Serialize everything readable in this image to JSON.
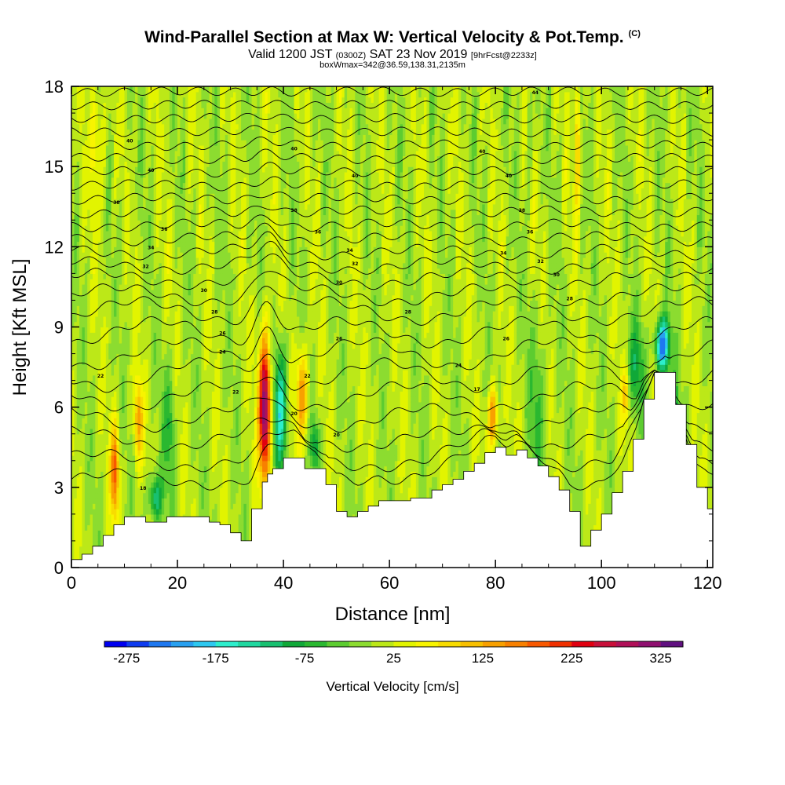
{
  "header": {
    "title": "Wind-Parallel Section at Max W: Vertical Velocity & Pot.Temp.",
    "copyright": "(C)",
    "valid_prefix": "Valid 1200 JST",
    "valid_z": "(0300Z)",
    "valid_date": "SAT 23 Nov 2019",
    "forecast": "[9hrFcst@2233z]",
    "boxinfo": "boxWmax=342@36.59,138.31,2135m"
  },
  "chart_data": {
    "type": "heatmap",
    "xlabel": "Distance [nm]",
    "ylabel": "Height [Kft MSL]",
    "xlim": [
      0,
      121
    ],
    "ylim": [
      0,
      18
    ],
    "x_ticks": [
      0,
      20,
      40,
      60,
      80,
      100,
      120
    ],
    "y_ticks": [
      0,
      3,
      6,
      9,
      12,
      15,
      18
    ],
    "terrain": {
      "x": [
        0,
        2,
        4,
        6,
        8,
        10,
        12,
        14,
        16,
        18,
        20,
        22,
        24,
        26,
        28,
        30,
        32,
        34,
        36,
        37,
        38,
        40,
        42,
        44,
        46,
        48,
        50,
        52,
        54,
        56,
        58,
        60,
        62,
        64,
        66,
        68,
        70,
        72,
        74,
        76,
        78,
        80,
        82,
        84,
        86,
        88,
        90,
        92,
        94,
        96,
        98,
        100,
        102,
        104,
        106,
        108,
        110,
        112,
        114,
        116,
        118,
        120,
        121
      ],
      "height": [
        0.3,
        0.5,
        0.8,
        1.2,
        1.6,
        1.9,
        1.9,
        1.7,
        1.7,
        1.9,
        1.9,
        1.9,
        1.9,
        1.7,
        1.6,
        1.3,
        1.0,
        2.2,
        3.2,
        3.5,
        3.7,
        4.1,
        4.1,
        3.7,
        3.7,
        3.1,
        2.1,
        1.9,
        2.1,
        2.3,
        2.5,
        2.5,
        2.5,
        2.6,
        2.6,
        2.9,
        3.1,
        3.3,
        3.6,
        3.9,
        4.3,
        4.5,
        4.2,
        4.4,
        4.1,
        3.8,
        3.4,
        2.9,
        2.1,
        0.8,
        1.4,
        2.0,
        2.8,
        3.6,
        4.8,
        6.3,
        7.3,
        7.3,
        6.1,
        4.6,
        3.0,
        2.2,
        2.0
      ]
    },
    "w_features": [
      {
        "x": 36.5,
        "z": 6.0,
        "sx": 1.1,
        "sz": 2.6,
        "w": 330
      },
      {
        "x": 39.5,
        "z": 6.0,
        "sx": 1.2,
        "sz": 2.3,
        "w": -175
      },
      {
        "x": 43.5,
        "z": 6.5,
        "sx": 1.1,
        "sz": 1.7,
        "w": 150
      },
      {
        "x": 46.0,
        "z": 4.6,
        "sx": 0.9,
        "sz": 1.0,
        "w": -90
      },
      {
        "x": 8.2,
        "z": 3.6,
        "sx": 0.8,
        "sz": 1.8,
        "w": 170
      },
      {
        "x": 12.6,
        "z": 5.5,
        "sx": 0.8,
        "sz": 1.5,
        "w": 120
      },
      {
        "x": 15.8,
        "z": 2.6,
        "sx": 1.3,
        "sz": 0.9,
        "w": -130
      },
      {
        "x": 18.5,
        "z": 5.3,
        "sx": 1.2,
        "sz": 2.2,
        "w": -75
      },
      {
        "x": 79.5,
        "z": 5.6,
        "sx": 0.9,
        "sz": 1.2,
        "w": 160
      },
      {
        "x": 88.0,
        "z": 6.0,
        "sx": 1.6,
        "sz": 3.2,
        "w": -60
      },
      {
        "x": 111.5,
        "z": 8.3,
        "sx": 1.3,
        "sz": 1.0,
        "w": -260
      },
      {
        "x": 113.5,
        "z": 5.6,
        "sx": 1.0,
        "sz": 1.2,
        "w": -150
      },
      {
        "x": 106.5,
        "z": 7.5,
        "sx": 1.6,
        "sz": 1.6,
        "w": -90
      },
      {
        "x": 104.5,
        "z": 6.5,
        "sx": 0.7,
        "sz": 1.0,
        "w": 90
      },
      {
        "x": 95.5,
        "z": 16.0,
        "sx": 0.6,
        "sz": 2.5,
        "w": 100
      },
      {
        "x": 86.5,
        "z": 16.5,
        "sx": 0.6,
        "sz": 2.0,
        "w": -40
      },
      {
        "x": 5.0,
        "z": 16.0,
        "sx": 1.3,
        "sz": 2.5,
        "w": 60
      }
    ],
    "theta_levels": [
      {
        "y0": 3.3,
        "amp": 0.25
      },
      {
        "y0": 4.0,
        "amp": 0.3
      },
      {
        "y0": 4.8,
        "amp": 0.35
      },
      {
        "y0": 5.6,
        "amp": 0.4
      },
      {
        "y0": 6.4,
        "amp": 0.45
      },
      {
        "y0": 7.2,
        "amp": 0.5
      },
      {
        "y0": 8.0,
        "amp": 0.5
      },
      {
        "y0": 8.8,
        "amp": 0.45
      },
      {
        "y0": 9.6,
        "amp": 0.4
      },
      {
        "y0": 10.2,
        "amp": 0.3
      },
      {
        "y0": 10.8,
        "amp": 0.25
      },
      {
        "y0": 11.3,
        "amp": 0.2
      },
      {
        "y0": 11.8,
        "amp": 0.15
      },
      {
        "y0": 12.3,
        "amp": 0.12
      },
      {
        "y0": 12.8,
        "amp": 0.1
      },
      {
        "y0": 13.3,
        "amp": 0.08
      },
      {
        "y0": 13.8,
        "amp": 0.07
      },
      {
        "y0": 14.3,
        "amp": 0.06
      },
      {
        "y0": 14.8,
        "amp": 0.05
      },
      {
        "y0": 15.3,
        "amp": 0.05
      },
      {
        "y0": 15.8,
        "amp": 0.05
      },
      {
        "y0": 16.3,
        "amp": 0.04
      },
      {
        "y0": 16.8,
        "amp": 0.04
      },
      {
        "y0": 17.3,
        "amp": 0.03
      },
      {
        "y0": 17.8,
        "amp": 0.03
      }
    ],
    "contour_labels": [
      {
        "x": 11.0,
        "y": 15.9,
        "text": "40"
      },
      {
        "x": 42.0,
        "y": 15.6,
        "text": "40"
      },
      {
        "x": 77.5,
        "y": 15.5,
        "text": "40"
      },
      {
        "x": 87.5,
        "y": 17.7,
        "text": "44"
      },
      {
        "x": 15.0,
        "y": 14.8,
        "text": "40"
      },
      {
        "x": 53.5,
        "y": 14.6,
        "text": "40"
      },
      {
        "x": 82.5,
        "y": 14.6,
        "text": "40"
      },
      {
        "x": 8.5,
        "y": 13.6,
        "text": "38"
      },
      {
        "x": 42.0,
        "y": 13.3,
        "text": "38"
      },
      {
        "x": 85.0,
        "y": 13.3,
        "text": "38"
      },
      {
        "x": 17.5,
        "y": 12.6,
        "text": "36"
      },
      {
        "x": 46.5,
        "y": 12.5,
        "text": "36"
      },
      {
        "x": 86.5,
        "y": 12.5,
        "text": "36"
      },
      {
        "x": 15.0,
        "y": 11.9,
        "text": "34"
      },
      {
        "x": 52.5,
        "y": 11.8,
        "text": "34"
      },
      {
        "x": 81.5,
        "y": 11.7,
        "text": "34"
      },
      {
        "x": 14.0,
        "y": 11.2,
        "text": "32"
      },
      {
        "x": 53.5,
        "y": 11.3,
        "text": "32"
      },
      {
        "x": 88.5,
        "y": 11.4,
        "text": "32"
      },
      {
        "x": 25.0,
        "y": 10.3,
        "text": "30"
      },
      {
        "x": 50.5,
        "y": 10.6,
        "text": "30"
      },
      {
        "x": 91.5,
        "y": 10.9,
        "text": "30"
      },
      {
        "x": 27.0,
        "y": 9.5,
        "text": "28"
      },
      {
        "x": 63.5,
        "y": 9.5,
        "text": "28"
      },
      {
        "x": 94.0,
        "y": 10.0,
        "text": "28"
      },
      {
        "x": 28.5,
        "y": 8.7,
        "text": "26"
      },
      {
        "x": 50.5,
        "y": 8.5,
        "text": "26"
      },
      {
        "x": 82.0,
        "y": 8.5,
        "text": "26"
      },
      {
        "x": 28.5,
        "y": 8.0,
        "text": "24"
      },
      {
        "x": 73.0,
        "y": 7.5,
        "text": "24"
      },
      {
        "x": 5.5,
        "y": 7.1,
        "text": "22"
      },
      {
        "x": 44.5,
        "y": 7.1,
        "text": "22"
      },
      {
        "x": 31.0,
        "y": 6.5,
        "text": "22"
      },
      {
        "x": 76.5,
        "y": 6.6,
        "text": "17"
      },
      {
        "x": 42.0,
        "y": 5.7,
        "text": "20"
      },
      {
        "x": 50.0,
        "y": 4.9,
        "text": "20"
      },
      {
        "x": 13.5,
        "y": 2.9,
        "text": "18"
      }
    ]
  },
  "colorbar": {
    "ticks": [
      "-275",
      "-175",
      "-75",
      "25",
      "125",
      "225",
      "325"
    ],
    "label": "Vertical Velocity [cm/s]",
    "colors": [
      "#0000f0",
      "#0f3cf0",
      "#1e78f0",
      "#28a0f0",
      "#2dc8f0",
      "#2deecc",
      "#20d8a0",
      "#18c070",
      "#10a838",
      "#2ab830",
      "#5ccc30",
      "#8cdc30",
      "#bce818",
      "#e2f400",
      "#f8f400",
      "#f8dc00",
      "#f8c000",
      "#f8a000",
      "#f88000",
      "#f85800",
      "#f03000",
      "#e00010",
      "#c8103a",
      "#b01058",
      "#901070",
      "#601080"
    ]
  }
}
